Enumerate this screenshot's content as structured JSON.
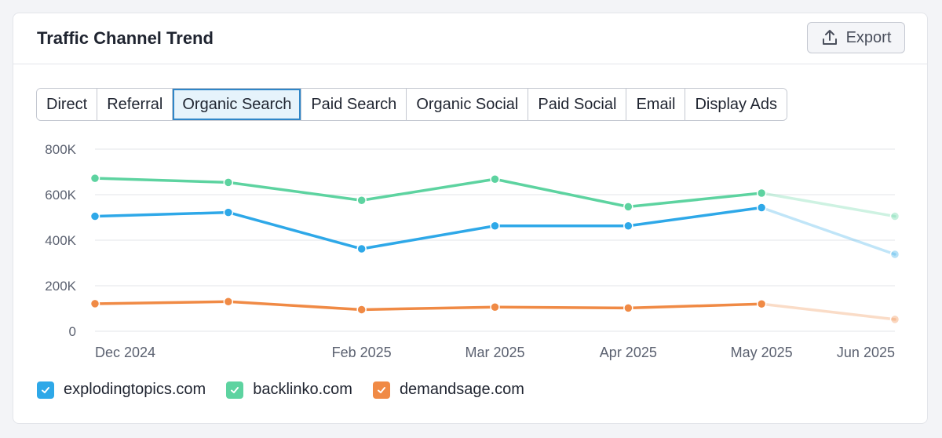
{
  "widget": {
    "title": "Traffic Channel Trend",
    "export_label": "Export",
    "export_icon": "upload-icon"
  },
  "tabs": [
    {
      "label": "Direct",
      "active": false
    },
    {
      "label": "Referral",
      "active": false
    },
    {
      "label": "Organic Search",
      "active": true
    },
    {
      "label": "Paid Search",
      "active": false
    },
    {
      "label": "Organic Social",
      "active": false
    },
    {
      "label": "Paid Social",
      "active": false
    },
    {
      "label": "Email",
      "active": false
    },
    {
      "label": "Display Ads",
      "active": false
    }
  ],
  "legend": [
    {
      "label": "explodingtopics.com",
      "color": "#2ea8e8",
      "checked": true
    },
    {
      "label": "backlinko.com",
      "color": "#5dd3a0",
      "checked": true
    },
    {
      "label": "demandsage.com",
      "color": "#f08a45",
      "checked": true
    }
  ],
  "colors": {
    "explodingtopics": "#2ea8e8",
    "backlinko": "#5dd3a0",
    "demandsage": "#f08a45",
    "grid": "#e3e5ea",
    "axis_text": "#5b6170"
  },
  "chart_data": {
    "type": "line",
    "x": [
      "2024-12",
      "2025-01",
      "2025-02",
      "2025-03",
      "2025-04",
      "2025-05",
      "2025-06"
    ],
    "x_tick_labels": [
      "Dec 2024",
      "",
      "Feb 2025",
      "Mar 2025",
      "Apr 2025",
      "May 2025",
      "Jun 2025"
    ],
    "ylim": [
      0,
      800000
    ],
    "y_ticks": [
      0,
      200000,
      400000,
      600000,
      800000
    ],
    "y_tick_labels": [
      "0",
      "200K",
      "400K",
      "600K",
      "800K"
    ],
    "grid": true,
    "legend_position": "bottom-left",
    "last_point_projected": true,
    "series": [
      {
        "name": "explodingtopics.com",
        "values": [
          505000,
          522000,
          362000,
          463000,
          463000,
          543000,
          338000
        ]
      },
      {
        "name": "backlinko.com",
        "values": [
          672000,
          654000,
          575000,
          668000,
          547000,
          607000,
          505000
        ]
      },
      {
        "name": "demandsage.com",
        "values": [
          121000,
          130000,
          95000,
          106000,
          102000,
          120000,
          52000
        ]
      }
    ]
  }
}
